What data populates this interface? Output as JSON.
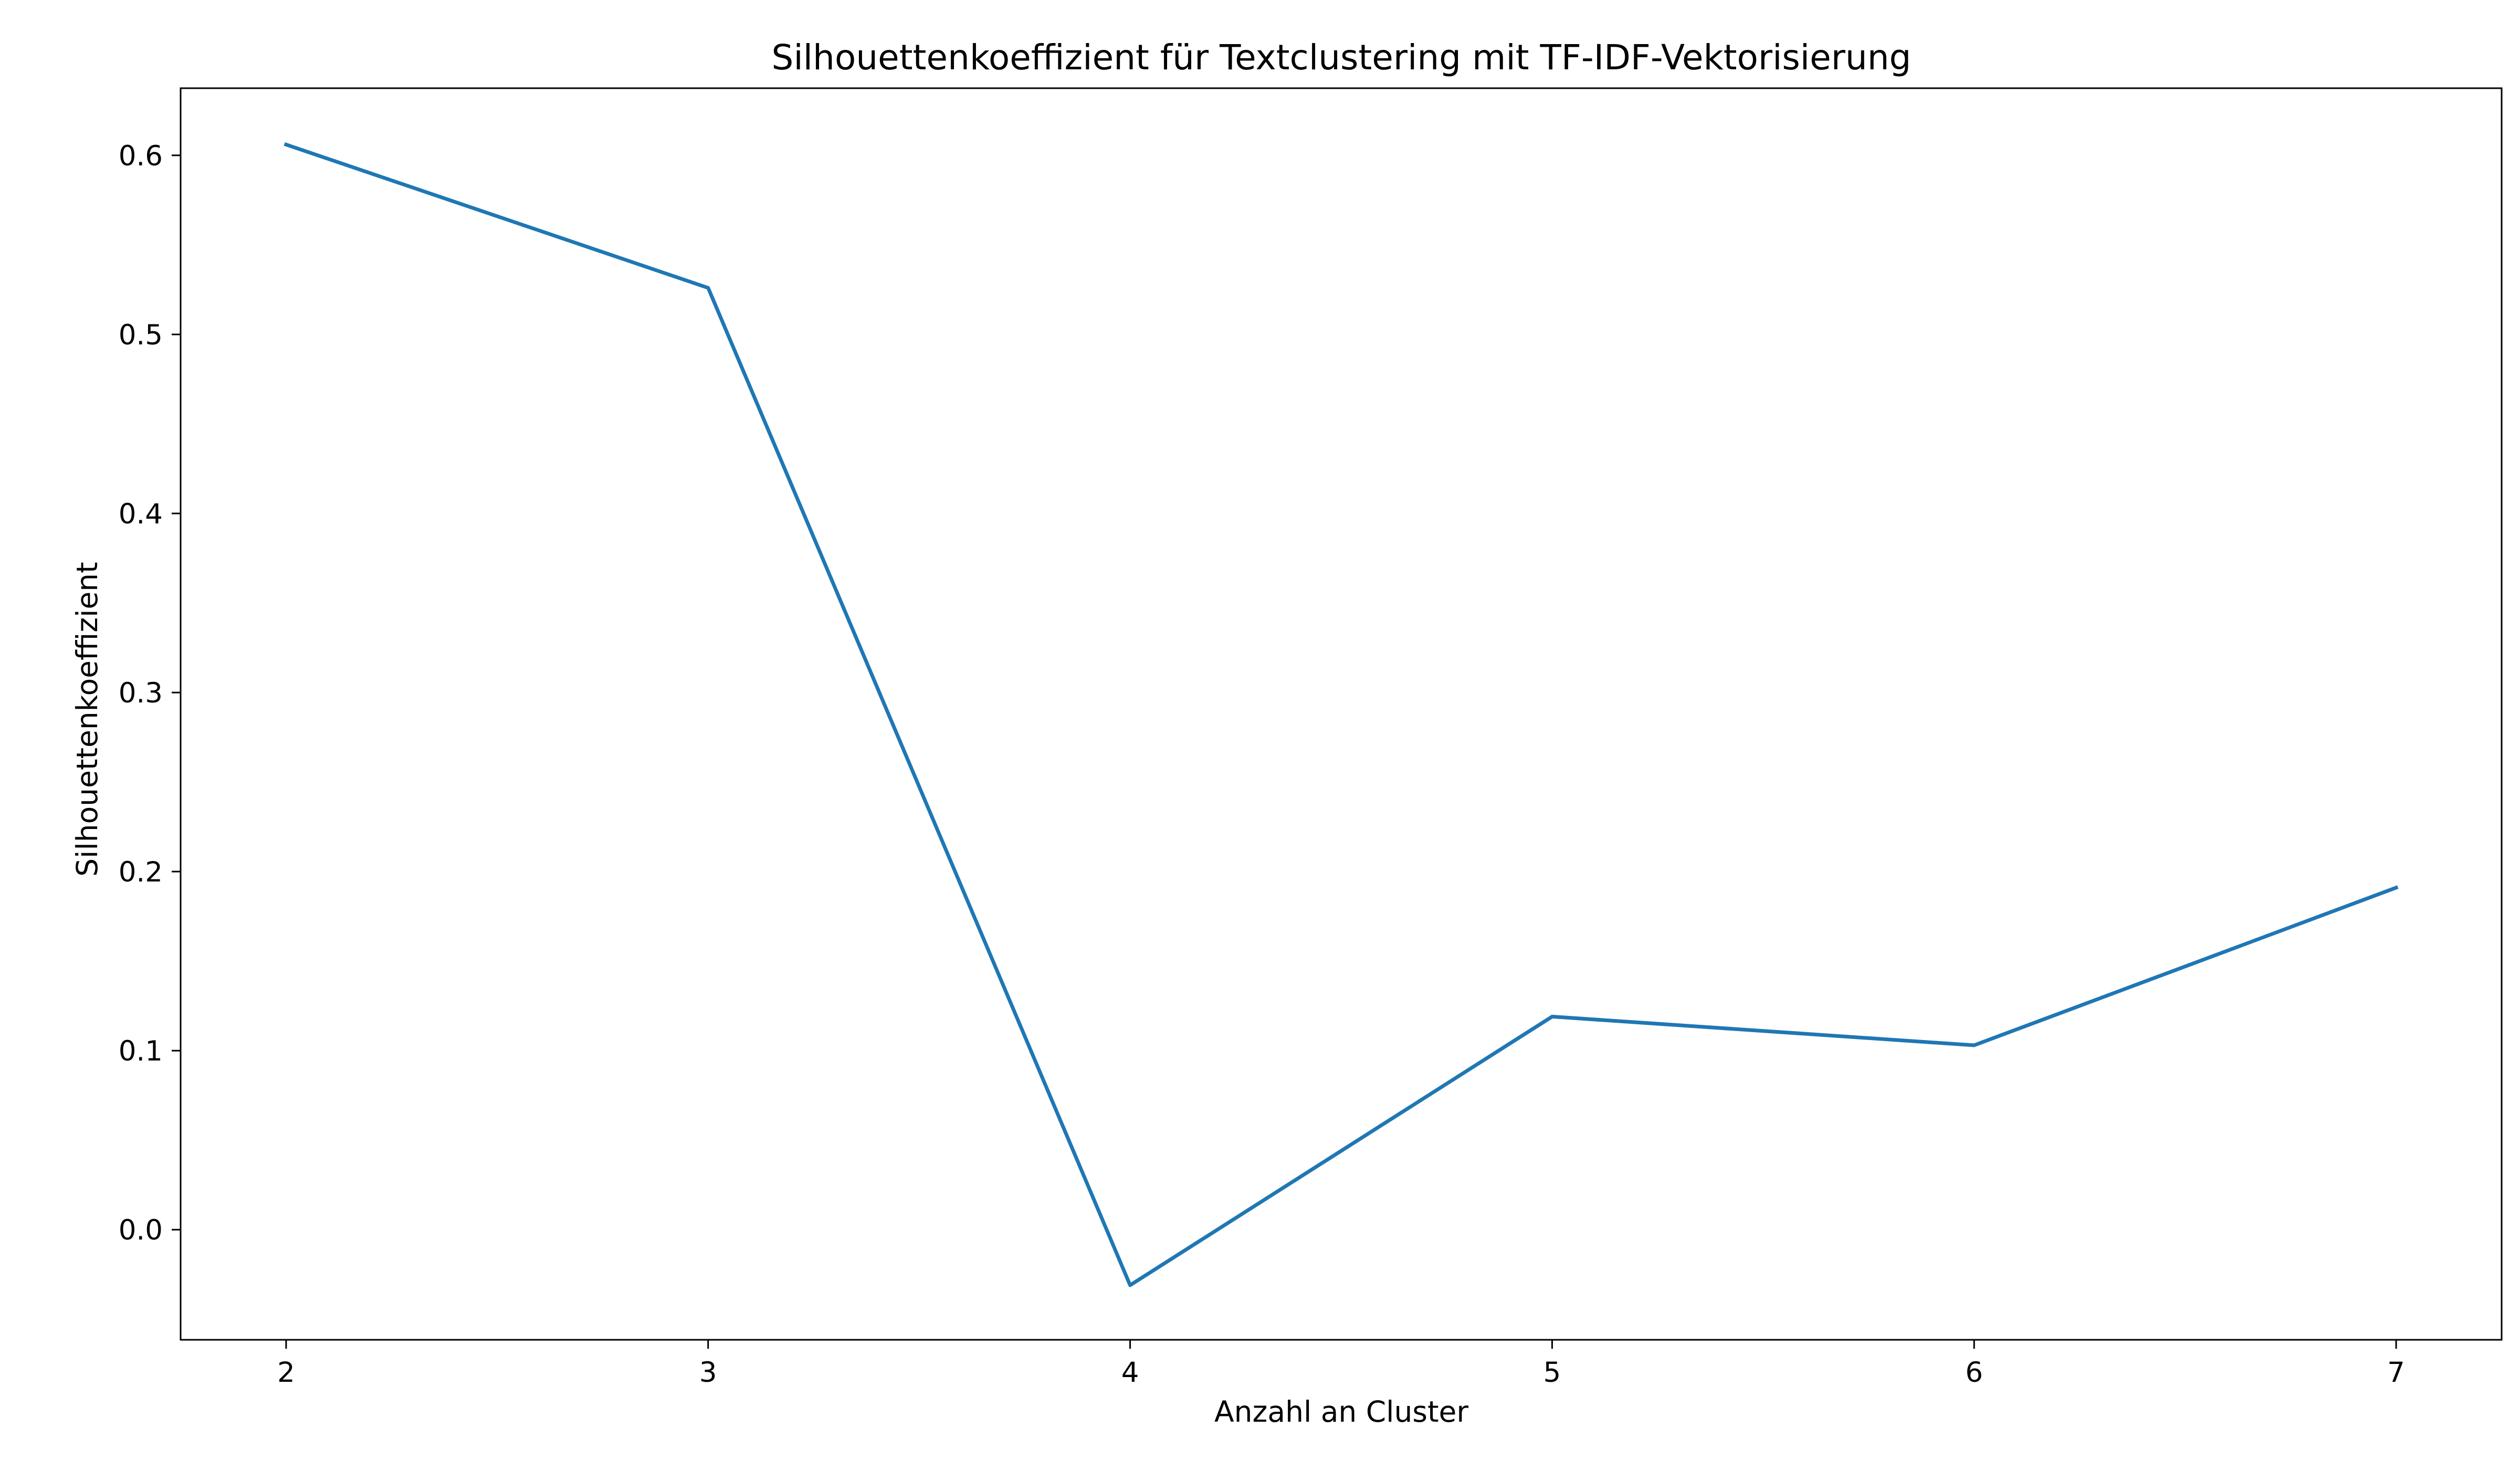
{
  "chart_data": {
    "type": "line",
    "title": "Silhouettenkoeffizient für Textclustering mit TF-IDF-Vektorisierung",
    "xlabel": "Anzahl an Cluster",
    "ylabel": "Silhouettenkoeffizient",
    "x": [
      2,
      3,
      4,
      5,
      6,
      7
    ],
    "series": [
      {
        "values": [
          0.606,
          0.526,
          -0.031,
          0.119,
          0.103,
          0.191
        ],
        "color": "#1f77b4"
      }
    ],
    "xlim": [
      1.75,
      7.25
    ],
    "ylim": [
      -0.0615,
      0.6375
    ],
    "xticks": [
      2,
      3,
      4,
      5,
      6,
      7
    ],
    "xtick_labels": [
      "2",
      "3",
      "4",
      "5",
      "6",
      "7"
    ],
    "yticks": [
      0.0,
      0.1,
      0.2,
      0.3,
      0.4,
      0.5,
      0.6
    ],
    "ytick_labels": [
      "0.0",
      "0.1",
      "0.2",
      "0.3",
      "0.4",
      "0.5",
      "0.6"
    ],
    "grid": false,
    "legend": false
  }
}
